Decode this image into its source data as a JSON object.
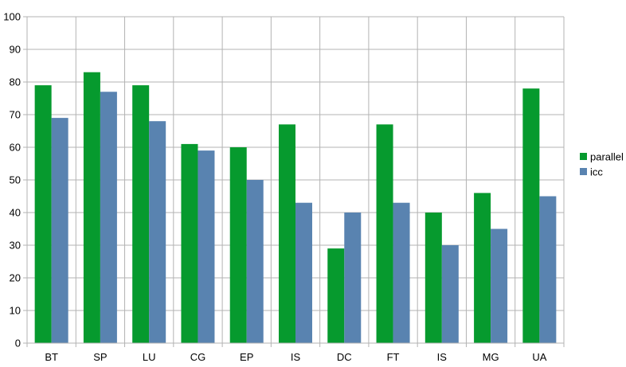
{
  "chart_data": {
    "type": "bar",
    "categories": [
      "BT",
      "SP",
      "LU",
      "CG",
      "EP",
      "IS",
      "DC",
      "FT",
      "IS",
      "MG",
      "UA"
    ],
    "series": [
      {
        "name": "parallel",
        "color": "#069a2e",
        "values": [
          79,
          83,
          79,
          61,
          60,
          67,
          29,
          67,
          40,
          46,
          78
        ]
      },
      {
        "name": "icc",
        "color": "#5983b0",
        "values": [
          69,
          77,
          68,
          59,
          50,
          43,
          40,
          43,
          30,
          35,
          45
        ]
      }
    ],
    "title": "",
    "xlabel": "",
    "ylabel": "",
    "ylim": [
      0,
      100
    ],
    "yticks": [
      0,
      10,
      20,
      30,
      40,
      50,
      60,
      70,
      80,
      90,
      100
    ],
    "grid": true,
    "legend_position": "right"
  }
}
